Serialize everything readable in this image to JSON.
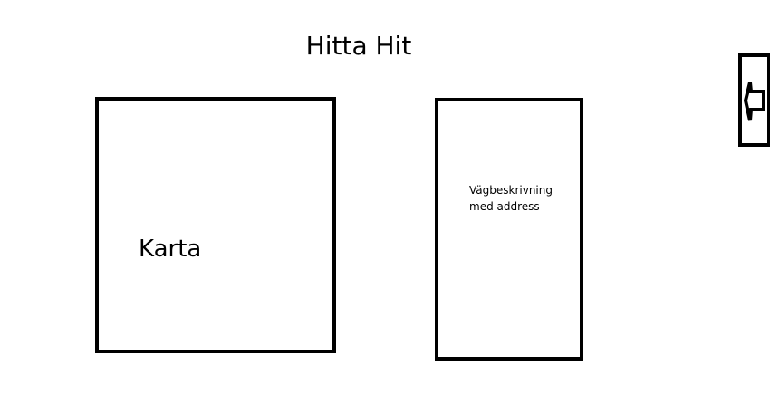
{
  "header": {
    "title": "Hitta Hit"
  },
  "map": {
    "label": "Karta"
  },
  "directions": {
    "text": "Vägbeskrivning med address"
  },
  "navigation": {
    "back_icon": "arrow-left-icon"
  },
  "colors": {
    "border": "#000000",
    "background": "#ffffff"
  }
}
